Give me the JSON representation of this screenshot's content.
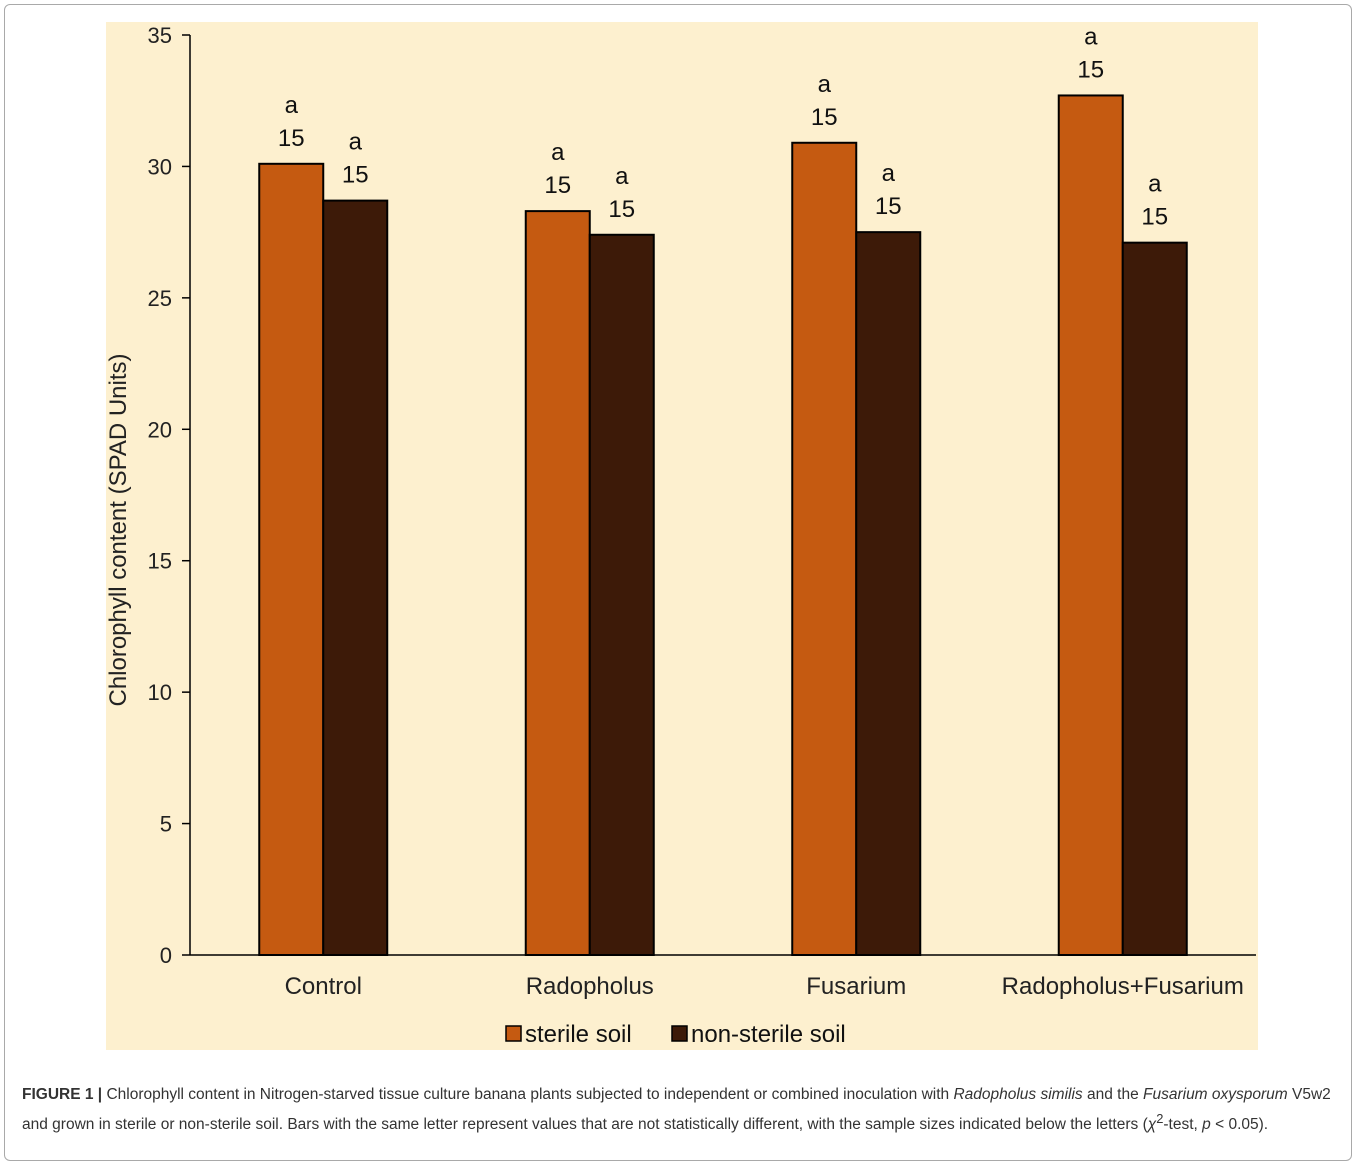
{
  "chart_data": {
    "type": "bar",
    "title": "",
    "ylabel": "Chlorophyll content (SPAD Units)",
    "xlabel": "",
    "ylim": [
      0,
      35
    ],
    "yticks": [
      0,
      5,
      10,
      15,
      20,
      25,
      30,
      35
    ],
    "categories": [
      "Control",
      "Radopholus",
      "Fusarium",
      "Radopholus+Fusarium"
    ],
    "series": [
      {
        "name": "sterile soil",
        "color": "#c55a11",
        "values": [
          30.1,
          28.3,
          30.9,
          32.7
        ],
        "letters": [
          "a",
          "a",
          "a",
          "a"
        ],
        "n": [
          "15",
          "15",
          "15",
          "15"
        ]
      },
      {
        "name": "non-sterile soil",
        "color": "#3d1a08",
        "values": [
          28.7,
          27.4,
          27.5,
          27.1
        ],
        "letters": [
          "a",
          "a",
          "a",
          "a"
        ],
        "n": [
          "15",
          "15",
          "15",
          "15"
        ]
      }
    ],
    "background_color": "#fdf0cf",
    "grid": false,
    "legend_position": "bottom"
  },
  "caption": {
    "label": "FIGURE 1 |",
    "part1": " Chlorophyll content in Nitrogen-starved tissue culture banana plants subjected to independent or combined inoculation with ",
    "italic1": "Radopholus similis",
    "part2": " and the ",
    "italic2": "Fusarium oxysporum",
    "part3": " V5w2 and grown in sterile or non-sterile soil. Bars with the same letter represent values that are not statistically different, with the sample sizes indicated below the letters (",
    "chi": "χ",
    "sup": "2",
    "part4": "-test, ",
    "italic3": "p",
    "part5": " < 0.05)."
  }
}
